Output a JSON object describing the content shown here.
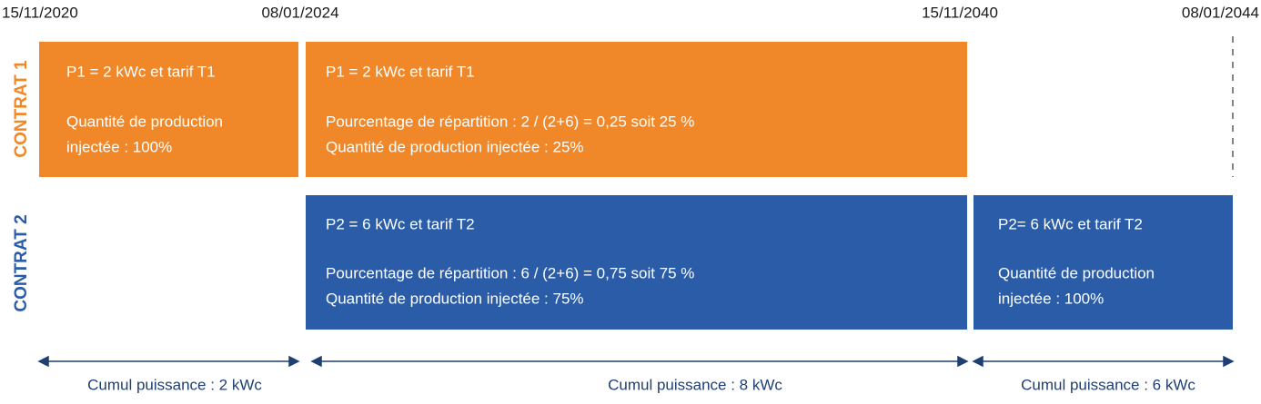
{
  "dates": [
    "15/11/2020",
    "08/01/2024",
    "15/11/2040",
    "08/01/2044"
  ],
  "contracts": [
    {
      "label": "CONTRAT 1",
      "periods": [
        {
          "heading": "P1 = 2 kWc et tarif T1",
          "details": [
            "Quantité de production",
            "injectée : 100%"
          ]
        },
        {
          "heading": "P1 = 2 kWc et tarif T1",
          "details": [
            "Pourcentage de répartition : 2 / (2+6) = 0,25 soit 25 %",
            "Quantité de production injectée : 25%"
          ]
        }
      ]
    },
    {
      "label": "CONTRAT 2",
      "periods": [
        {
          "heading": "P2 = 6 kWc et tarif T2",
          "details": [
            "Pourcentage de répartition : 6 / (2+6) = 0,75 soit 75 %",
            "Quantité de production injectée : 75%"
          ]
        },
        {
          "heading": "P2= 6 kWc et tarif T2",
          "details": [
            "Quantité de production",
            "injectée : 100%"
          ]
        }
      ]
    }
  ],
  "totals": [
    "Cumul puissance : 2 kWc",
    "Cumul puissance : 8 kWc",
    "Cumul puissance : 6 kWc"
  ]
}
